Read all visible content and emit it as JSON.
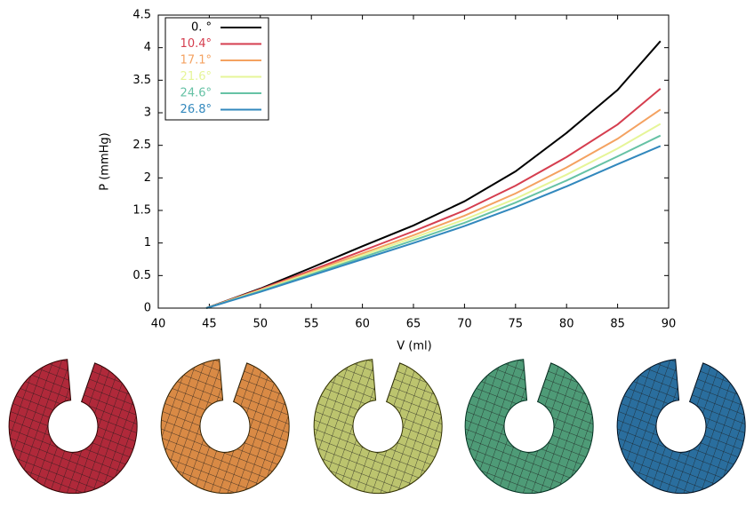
{
  "chart_data": {
    "type": "line",
    "xlabel": "V (ml)",
    "ylabel": "P (mmHg)",
    "x": [
      44.7,
      50,
      55,
      60,
      65,
      70,
      75,
      80,
      85,
      89.2
    ],
    "series": [
      {
        "name": "0.  °",
        "color": "#000000",
        "values": [
          0,
          0.3,
          0.62,
          0.95,
          1.27,
          1.64,
          2.1,
          2.69,
          3.35,
          4.1
        ]
      },
      {
        "name": "10.4°",
        "color": "#d53e4f",
        "values": [
          0,
          0.29,
          0.58,
          0.88,
          1.18,
          1.5,
          1.88,
          2.32,
          2.82,
          3.37
        ]
      },
      {
        "name": "17.1°",
        "color": "#f4a261",
        "values": [
          0,
          0.28,
          0.56,
          0.84,
          1.12,
          1.42,
          1.76,
          2.16,
          2.6,
          3.05
        ]
      },
      {
        "name": "21.6°",
        "color": "#e6f598",
        "values": [
          0,
          0.27,
          0.54,
          0.81,
          1.08,
          1.36,
          1.68,
          2.05,
          2.45,
          2.83
        ]
      },
      {
        "name": "24.6°",
        "color": "#66c2a5",
        "values": [
          0,
          0.26,
          0.52,
          0.78,
          1.04,
          1.31,
          1.62,
          1.96,
          2.33,
          2.65
        ]
      },
      {
        "name": "26.8°",
        "color": "#3288bd",
        "values": [
          0,
          0.25,
          0.5,
          0.75,
          1.0,
          1.26,
          1.55,
          1.87,
          2.21,
          2.49
        ]
      }
    ],
    "xlim": [
      40,
      90
    ],
    "xticks": [
      40,
      45,
      50,
      55,
      60,
      65,
      70,
      75,
      80,
      85,
      90
    ],
    "ylim": [
      0,
      4.5
    ],
    "yticks": [
      0,
      0.5,
      1,
      1.5,
      2,
      2.5,
      3,
      3.5,
      4,
      4.5
    ],
    "legend": "upper-left",
    "grid": false
  }
}
